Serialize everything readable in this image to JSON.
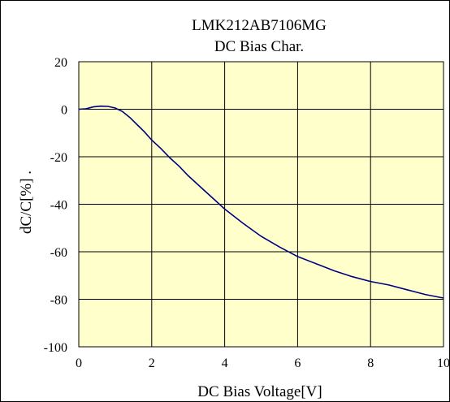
{
  "chart_data": {
    "type": "line",
    "title": "LMK212AB7106MG",
    "subtitle": "DC Bias Char.",
    "xlabel": "DC Bias Voltage[V]",
    "ylabel": "dC/C[%] .",
    "xlim": [
      0,
      10
    ],
    "ylim": [
      -100,
      20
    ],
    "xticks": [
      "0",
      "2",
      "4",
      "6",
      "8",
      "10"
    ],
    "yticks": [
      "20",
      "0",
      "-20",
      "-40",
      "-60",
      "-80",
      "-100"
    ],
    "grid": true,
    "plot_background": "#ffffcc",
    "series": [
      {
        "color": "#000080",
        "x": [
          0,
          0.2,
          0.4,
          0.6,
          0.8,
          1.0,
          1.2,
          1.4,
          1.6,
          1.8,
          2.0,
          2.25,
          2.5,
          2.75,
          3.0,
          3.25,
          3.5,
          3.75,
          4.0,
          4.5,
          5.0,
          5.5,
          6.0,
          6.5,
          7.0,
          7.5,
          8.0,
          8.5,
          9.0,
          9.5,
          10.0
        ],
        "y": [
          0,
          0.2,
          1.0,
          1.3,
          1.2,
          0.5,
          -1.0,
          -3.5,
          -6.5,
          -9.5,
          -13.0,
          -16.5,
          -20.5,
          -24.0,
          -28.0,
          -31.5,
          -35.0,
          -38.5,
          -42.0,
          -48.0,
          -53.5,
          -58.0,
          -62.0,
          -65.0,
          -68.0,
          -70.5,
          -72.5,
          -74.0,
          -76.0,
          -78.0,
          -79.5
        ]
      }
    ]
  }
}
